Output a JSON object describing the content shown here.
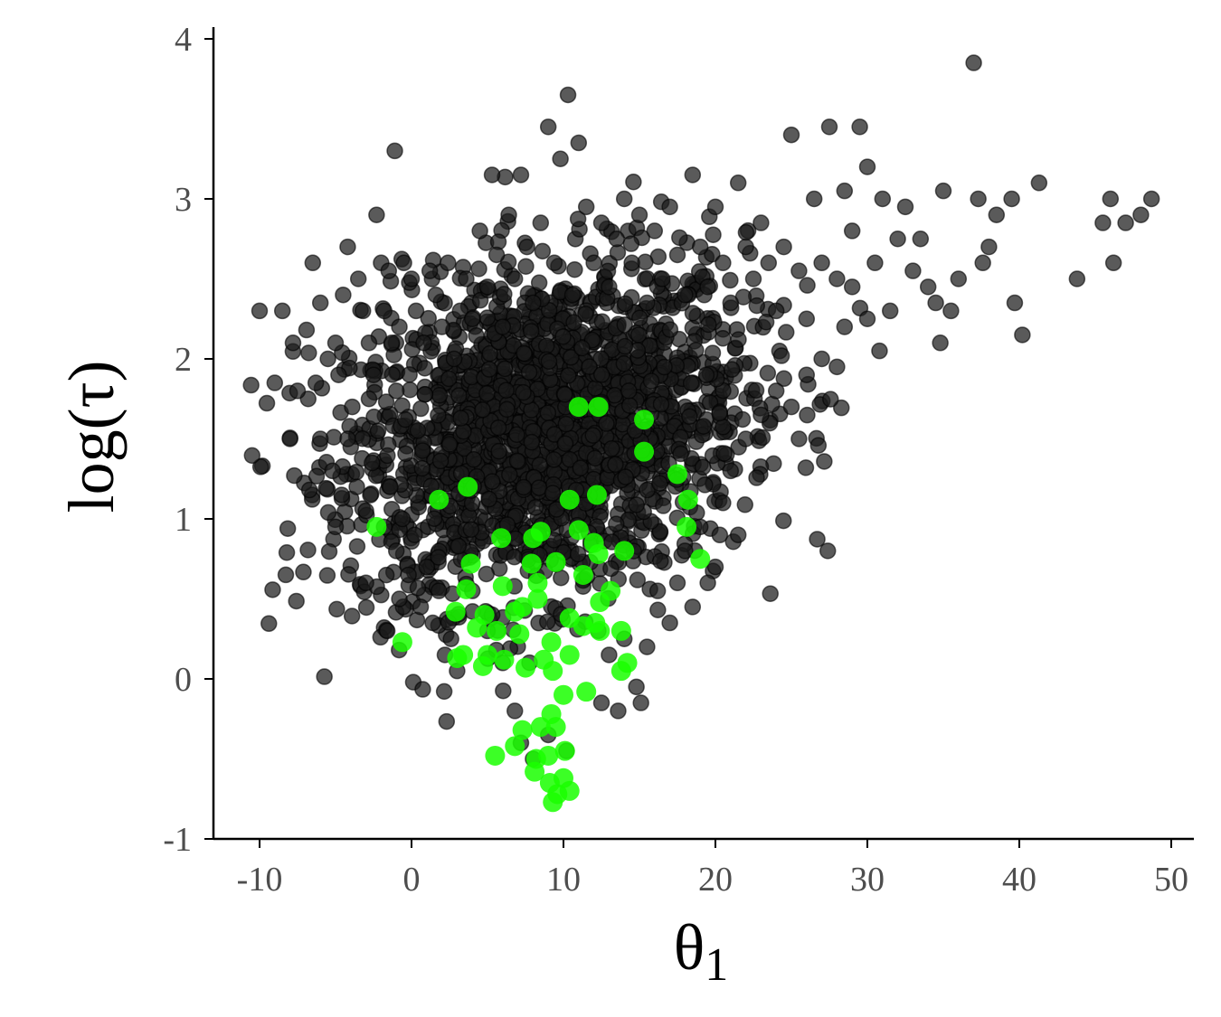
{
  "chart_data": {
    "type": "scatter",
    "title": "",
    "xlabel": "θ",
    "xlabel_sub": "1",
    "ylabel": "log(τ)",
    "xlim": [
      -13,
      51.5
    ],
    "ylim": [
      -1,
      4.05
    ],
    "x_ticks": [
      -10,
      0,
      10,
      20,
      30,
      40,
      50
    ],
    "x_tick_labels": [
      "-10",
      "0",
      "10",
      "20",
      "30",
      "40",
      "50"
    ],
    "y_ticks": [
      -1,
      0,
      1,
      2,
      3,
      4
    ],
    "y_tick_labels": [
      "-1",
      "0",
      "1",
      "2",
      "3",
      "4"
    ],
    "grid": false,
    "legend": "none",
    "colors": {
      "series_dark": "#1a1a1a",
      "series_green": "#1aff00",
      "axis": "#000000",
      "ticks_text": "#4d4d4d"
    },
    "series": [
      {
        "color": "#1a1a1a",
        "points": [
          [
            -10,
            2.3
          ],
          [
            -8.5,
            2.3
          ],
          [
            -7.8,
            2.1
          ],
          [
            -6.5,
            2.6
          ],
          [
            -6,
            2.35
          ],
          [
            -5.5,
            2.0
          ],
          [
            -5,
            2.1
          ],
          [
            -4.8,
            1.9
          ],
          [
            -4.5,
            2.4
          ],
          [
            -4.2,
            2.7
          ],
          [
            -3.9,
            1.7
          ],
          [
            -3.5,
            2.5
          ],
          [
            -3.2,
            2.3
          ],
          [
            -2.8,
            2.1
          ],
          [
            -2.5,
            1.9
          ],
          [
            -2.3,
            2.9
          ],
          [
            -2,
            2.6
          ],
          [
            -1.8,
            2.3
          ],
          [
            -1.5,
            2.55
          ],
          [
            -1.3,
            2.1
          ],
          [
            -1.1,
            3.3
          ],
          [
            -1,
            1.8
          ],
          [
            -0.8,
            2.2
          ],
          [
            -0.5,
            2.6
          ],
          [
            0,
            2.5
          ],
          [
            0.3,
            2.3
          ],
          [
            0.8,
            2.1
          ],
          [
            1.2,
            2.55
          ],
          [
            1.6,
            2.4
          ],
          [
            2,
            2.2
          ],
          [
            2.4,
            2.6
          ],
          [
            2.8,
            2.0
          ],
          [
            3.2,
            2.3
          ],
          [
            3.6,
            2.5
          ],
          [
            4,
            2.25
          ],
          [
            4.5,
            2.8
          ],
          [
            5,
            2.45
          ],
          [
            5.3,
            3.15
          ],
          [
            5.6,
            2.65
          ],
          [
            6,
            2.2
          ],
          [
            6.4,
            2.9
          ],
          [
            6.8,
            2.5
          ],
          [
            7.2,
            3.15
          ],
          [
            7.6,
            2.7
          ],
          [
            8,
            2.35
          ],
          [
            8.5,
            2.85
          ],
          [
            9,
            3.45
          ],
          [
            9.4,
            2.6
          ],
          [
            9.8,
            3.25
          ],
          [
            10.3,
            3.65
          ],
          [
            10.6,
            2.4
          ],
          [
            11,
            3.35
          ],
          [
            11.5,
            2.95
          ],
          [
            12,
            2.6
          ],
          [
            12.5,
            2.85
          ],
          [
            13,
            2.45
          ],
          [
            13.5,
            2.75
          ],
          [
            14,
            3.0
          ],
          [
            14.5,
            2.6
          ],
          [
            15,
            2.9
          ],
          [
            15.5,
            2.35
          ],
          [
            16,
            2.8
          ],
          [
            16.5,
            2.5
          ],
          [
            17,
            2.95
          ],
          [
            17.5,
            2.65
          ],
          [
            18,
            2.4
          ],
          [
            18.5,
            3.15
          ],
          [
            19,
            2.7
          ],
          [
            19.5,
            2.45
          ],
          [
            20,
            2.95
          ],
          [
            20.5,
            2.6
          ],
          [
            21,
            2.35
          ],
          [
            21.5,
            3.1
          ],
          [
            22,
            2.7
          ],
          [
            22.5,
            2.5
          ],
          [
            23,
            2.85
          ],
          [
            23.5,
            2.6
          ],
          [
            24,
            2.3
          ],
          [
            24.5,
            2.7
          ],
          [
            25,
            3.4
          ],
          [
            25.5,
            2.55
          ],
          [
            26,
            2.25
          ],
          [
            26.5,
            3.0
          ],
          [
            27,
            2.6
          ],
          [
            27.5,
            3.45
          ],
          [
            28,
            2.5
          ],
          [
            28.5,
            3.05
          ],
          [
            29,
            2.8
          ],
          [
            29.5,
            3.45
          ],
          [
            30,
            3.2
          ],
          [
            30.5,
            2.6
          ],
          [
            31,
            3.0
          ],
          [
            31.5,
            2.3
          ],
          [
            32,
            2.75
          ],
          [
            32.5,
            2.95
          ],
          [
            33,
            2.55
          ],
          [
            33.5,
            2.75
          ],
          [
            34,
            2.45
          ],
          [
            34.5,
            2.35
          ],
          [
            35,
            3.05
          ],
          [
            35.5,
            2.3
          ],
          [
            36,
            2.5
          ],
          [
            37,
            3.85
          ],
          [
            37.3,
            3.0
          ],
          [
            37.6,
            2.6
          ],
          [
            38,
            2.7
          ],
          [
            38.5,
            2.9
          ],
          [
            39.5,
            3.0
          ],
          [
            39.7,
            2.35
          ],
          [
            40.2,
            2.15
          ],
          [
            41.3,
            3.1
          ],
          [
            43.8,
            2.5
          ],
          [
            45.5,
            2.85
          ],
          [
            46,
            3.0
          ],
          [
            46.2,
            2.6
          ],
          [
            47,
            2.85
          ],
          [
            48,
            2.9
          ],
          [
            48.7,
            3.0
          ],
          [
            34.8,
            2.1
          ],
          [
            30.8,
            2.05
          ],
          [
            -6.8,
            1.75
          ],
          [
            -6,
            1.5
          ],
          [
            -5.2,
            1.3
          ],
          [
            -4.6,
            1.15
          ],
          [
            -4,
            1.45
          ],
          [
            -3.6,
            1.2
          ],
          [
            -3,
            1.05
          ],
          [
            -2.6,
            1.35
          ],
          [
            -2.2,
            1.55
          ],
          [
            -1.8,
            0.95
          ],
          [
            -1.4,
            1.2
          ],
          [
            -1,
            0.8
          ],
          [
            -0.6,
            1.0
          ],
          [
            -0.2,
            0.65
          ],
          [
            0.2,
            0.9
          ],
          [
            0.6,
            0.45
          ],
          [
            1,
            0.7
          ],
          [
            1.4,
            0.35
          ],
          [
            1.8,
            0.55
          ],
          [
            2.2,
            0.15
          ],
          [
            2.6,
            0.25
          ],
          [
            3,
            0.05
          ],
          [
            -3,
            0.6
          ],
          [
            -1.6,
            0.3
          ],
          [
            -0.8,
            0.5
          ],
          [
            6.8,
            -0.2
          ],
          [
            7.2,
            -0.4
          ],
          [
            8,
            -0.5
          ],
          [
            9,
            -0.35
          ],
          [
            10.2,
            -0.45
          ],
          [
            12.5,
            -0.15
          ],
          [
            13.6,
            -0.2
          ],
          [
            15.1,
            -0.15
          ],
          [
            14.8,
            -0.05
          ],
          [
            13,
            0.15
          ],
          [
            14,
            0.25
          ],
          [
            15.5,
            0.2
          ],
          [
            16.2,
            0.55
          ],
          [
            17,
            0.35
          ],
          [
            17.5,
            0.6
          ],
          [
            18,
            0.8
          ],
          [
            18.5,
            0.45
          ],
          [
            19,
            0.95
          ],
          [
            19.5,
            0.6
          ],
          [
            20,
            0.7
          ],
          [
            21.5,
            0.9
          ],
          [
            20.5,
            1.1
          ],
          [
            21,
            1.3
          ],
          [
            22,
            1.5
          ],
          [
            23,
            1.65
          ],
          [
            24,
            1.8
          ],
          [
            25,
            1.7
          ],
          [
            25.5,
            1.5
          ],
          [
            26,
            1.9
          ],
          [
            27,
            2.0
          ],
          [
            28,
            1.95
          ],
          [
            28.5,
            2.2
          ],
          [
            29,
            2.45
          ],
          [
            30,
            2.25
          ],
          [
            -5,
            0.95
          ],
          [
            -4.2,
            1.5
          ],
          [
            -2.8,
            1.75
          ],
          [
            -8,
            1.5
          ],
          [
            -7.5,
            1.8
          ],
          [
            -9,
            1.85
          ],
          [
            -6.3,
            1.85
          ],
          [
            4,
            0.55
          ],
          [
            5,
            0.3
          ],
          [
            6,
            0.1
          ]
        ]
      },
      {
        "color": "#1aff00",
        "points": [
          [
            11,
            1.7
          ],
          [
            12.3,
            1.7
          ],
          [
            15.3,
            1.62
          ],
          [
            15.3,
            1.42
          ],
          [
            17.5,
            1.28
          ],
          [
            18.2,
            1.12
          ],
          [
            18.1,
            0.95
          ],
          [
            19,
            0.75
          ],
          [
            3.7,
            1.2
          ],
          [
            1.8,
            1.12
          ],
          [
            -2.3,
            0.95
          ],
          [
            -0.6,
            0.23
          ],
          [
            5.9,
            0.88
          ],
          [
            8,
            0.88
          ],
          [
            8.5,
            0.92
          ],
          [
            10.4,
            1.12
          ],
          [
            12.2,
            1.15
          ],
          [
            11,
            0.93
          ],
          [
            12,
            0.85
          ],
          [
            12.3,
            0.78
          ],
          [
            14,
            0.8
          ],
          [
            3.9,
            0.72
          ],
          [
            7.9,
            0.72
          ],
          [
            9.5,
            0.73
          ],
          [
            11.3,
            0.65
          ],
          [
            6,
            0.58
          ],
          [
            3.6,
            0.56
          ],
          [
            8.3,
            0.6
          ],
          [
            13.1,
            0.55
          ],
          [
            12.4,
            0.48
          ],
          [
            7.3,
            0.45
          ],
          [
            8.3,
            0.5
          ],
          [
            2.9,
            0.42
          ],
          [
            4.8,
            0.4
          ],
          [
            6.8,
            0.42
          ],
          [
            10.4,
            0.38
          ],
          [
            11.3,
            0.33
          ],
          [
            12.1,
            0.35
          ],
          [
            13.8,
            0.3
          ],
          [
            4.3,
            0.32
          ],
          [
            5.6,
            0.3
          ],
          [
            7.1,
            0.28
          ],
          [
            9.2,
            0.23
          ],
          [
            12.4,
            0.3
          ],
          [
            3.4,
            0.15
          ],
          [
            5,
            0.15
          ],
          [
            6.1,
            0.12
          ],
          [
            8.7,
            0.12
          ],
          [
            10.4,
            0.15
          ],
          [
            3,
            0.13
          ],
          [
            4.7,
            0.08
          ],
          [
            7.5,
            0.07
          ],
          [
            9.3,
            0.05
          ],
          [
            13.8,
            0.05
          ],
          [
            14.2,
            0.1
          ],
          [
            10,
            -0.1
          ],
          [
            11.5,
            -0.08
          ],
          [
            9.2,
            -0.22
          ],
          [
            8.5,
            -0.3
          ],
          [
            7.3,
            -0.32
          ],
          [
            9.5,
            -0.3
          ],
          [
            6.8,
            -0.42
          ],
          [
            5.5,
            -0.48
          ],
          [
            8.2,
            -0.5
          ],
          [
            9,
            -0.48
          ],
          [
            10.1,
            -0.45
          ],
          [
            8.1,
            -0.58
          ],
          [
            9.1,
            -0.65
          ],
          [
            10,
            -0.62
          ],
          [
            9.6,
            -0.72
          ],
          [
            10.4,
            -0.7
          ],
          [
            9.3,
            -0.77
          ]
        ]
      }
    ]
  }
}
